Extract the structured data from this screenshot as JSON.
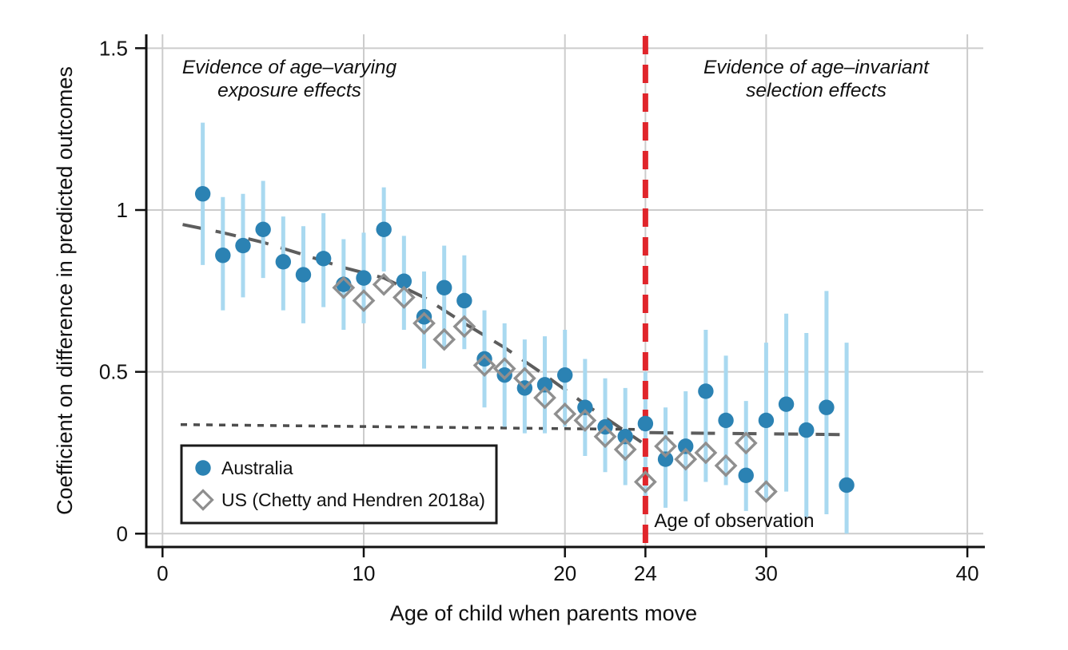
{
  "chart_data": {
    "type": "scatter",
    "title": "",
    "xlabel": "Age of child when parents move",
    "ylabel": "Coefficient on difference in predicted outcomes",
    "xlim": [
      -0.8,
      41
    ],
    "ylim": [
      -0.04,
      1.54
    ],
    "x_ticks": [
      0,
      10,
      20,
      24,
      30,
      40
    ],
    "x_tick_labels": [
      "0",
      "10",
      "20",
      "24",
      "30",
      "40"
    ],
    "y_ticks": [
      0,
      0.5,
      1,
      1.5
    ],
    "y_tick_labels": [
      "0",
      "0.5",
      "1",
      "1.5"
    ],
    "grid": true,
    "legend_position": "lower-left",
    "colors": {
      "australia_marker": "#2b82b3",
      "australia_ci": "#a9d9f0",
      "us_marker": "#8f8f8f",
      "trend_gray": "#5d5d5d",
      "dotted_gray": "#4d4d4d",
      "gridline": "#cccccc",
      "vline_red": "#e0252b",
      "axis_black": "#111111"
    },
    "annotations": {
      "left": {
        "lines": [
          "Evidence of age–varying",
          "exposure effects"
        ]
      },
      "right": {
        "lines": [
          "Evidence of age–invariant",
          "selection effects"
        ]
      },
      "vline_label": "Age of observation"
    },
    "vline": {
      "x": 24
    },
    "legend": {
      "items": [
        {
          "label": "Australia",
          "marker": "circle"
        },
        {
          "label": "US (Chetty and Hendren 2018a)",
          "marker": "diamond"
        }
      ]
    },
    "series": [
      {
        "name": "Australia",
        "marker": "circle",
        "points": [
          {
            "age": 2,
            "v": 1.05,
            "lo": 0.83,
            "hi": 1.27
          },
          {
            "age": 3,
            "v": 0.86,
            "lo": 0.69,
            "hi": 1.04
          },
          {
            "age": 4,
            "v": 0.89,
            "lo": 0.73,
            "hi": 1.05
          },
          {
            "age": 5,
            "v": 0.94,
            "lo": 0.79,
            "hi": 1.09
          },
          {
            "age": 6,
            "v": 0.84,
            "lo": 0.69,
            "hi": 0.98
          },
          {
            "age": 7,
            "v": 0.8,
            "lo": 0.65,
            "hi": 0.95
          },
          {
            "age": 8,
            "v": 0.85,
            "lo": 0.7,
            "hi": 0.99
          },
          {
            "age": 9,
            "v": 0.77,
            "lo": 0.63,
            "hi": 0.91
          },
          {
            "age": 10,
            "v": 0.79,
            "lo": 0.65,
            "hi": 0.93
          },
          {
            "age": 11,
            "v": 0.94,
            "lo": 0.81,
            "hi": 1.07
          },
          {
            "age": 12,
            "v": 0.78,
            "lo": 0.63,
            "hi": 0.92
          },
          {
            "age": 13,
            "v": 0.67,
            "lo": 0.51,
            "hi": 0.81
          },
          {
            "age": 14,
            "v": 0.76,
            "lo": 0.57,
            "hi": 0.89
          },
          {
            "age": 15,
            "v": 0.72,
            "lo": 0.57,
            "hi": 0.86
          },
          {
            "age": 16,
            "v": 0.54,
            "lo": 0.39,
            "hi": 0.69
          },
          {
            "age": 17,
            "v": 0.49,
            "lo": 0.33,
            "hi": 0.65
          },
          {
            "age": 18,
            "v": 0.45,
            "lo": 0.31,
            "hi": 0.6
          },
          {
            "age": 19,
            "v": 0.46,
            "lo": 0.31,
            "hi": 0.61
          },
          {
            "age": 20,
            "v": 0.49,
            "lo": 0.33,
            "hi": 0.63
          },
          {
            "age": 21,
            "v": 0.39,
            "lo": 0.24,
            "hi": 0.54
          },
          {
            "age": 22,
            "v": 0.33,
            "lo": 0.19,
            "hi": 0.48
          },
          {
            "age": 23,
            "v": 0.3,
            "lo": 0.15,
            "hi": 0.45
          },
          {
            "age": 24,
            "v": 0.34,
            "lo": 0.07,
            "hi": 0.5
          },
          {
            "age": 25,
            "v": 0.23,
            "lo": 0.08,
            "hi": 0.39
          },
          {
            "age": 26,
            "v": 0.27,
            "lo": 0.1,
            "hi": 0.44
          },
          {
            "age": 27,
            "v": 0.44,
            "lo": 0.16,
            "hi": 0.63
          },
          {
            "age": 28,
            "v": 0.35,
            "lo": 0.15,
            "hi": 0.55
          },
          {
            "age": 29,
            "v": 0.18,
            "lo": 0.07,
            "hi": 0.41
          },
          {
            "age": 30,
            "v": 0.35,
            "lo": 0.11,
            "hi": 0.59
          },
          {
            "age": 31,
            "v": 0.4,
            "lo": 0.13,
            "hi": 0.68
          },
          {
            "age": 32,
            "v": 0.32,
            "lo": 0.05,
            "hi": 0.62
          },
          {
            "age": 33,
            "v": 0.39,
            "lo": 0.06,
            "hi": 0.75
          },
          {
            "age": 34,
            "v": 0.15,
            "lo": 0.0,
            "hi": 0.59
          }
        ]
      },
      {
        "name": "US (Chetty and Hendren 2018a)",
        "marker": "diamond",
        "points": [
          {
            "age": 9,
            "v": 0.76
          },
          {
            "age": 10,
            "v": 0.72
          },
          {
            "age": 11,
            "v": 0.77
          },
          {
            "age": 12,
            "v": 0.73
          },
          {
            "age": 13,
            "v": 0.65
          },
          {
            "age": 14,
            "v": 0.6
          },
          {
            "age": 15,
            "v": 0.64
          },
          {
            "age": 16,
            "v": 0.52
          },
          {
            "age": 17,
            "v": 0.51
          },
          {
            "age": 18,
            "v": 0.48
          },
          {
            "age": 19,
            "v": 0.42
          },
          {
            "age": 20,
            "v": 0.37
          },
          {
            "age": 21,
            "v": 0.35
          },
          {
            "age": 22,
            "v": 0.3
          },
          {
            "age": 23,
            "v": 0.26
          },
          {
            "age": 24,
            "v": 0.16
          },
          {
            "age": 25,
            "v": 0.27
          },
          {
            "age": 26,
            "v": 0.23
          },
          {
            "age": 27,
            "v": 0.25
          },
          {
            "age": 28,
            "v": 0.21
          },
          {
            "age": 29,
            "v": 0.28
          },
          {
            "age": 30,
            "v": 0.13
          }
        ]
      }
    ],
    "trend_lines": [
      {
        "name": "exposure-effect-fit",
        "style": "longdash",
        "points": [
          [
            1,
            0.955
          ],
          [
            3,
            0.93
          ],
          [
            5,
            0.9
          ],
          [
            7,
            0.862
          ],
          [
            9,
            0.822
          ],
          [
            11,
            0.79
          ],
          [
            13,
            0.73
          ],
          [
            15,
            0.65
          ],
          [
            17,
            0.575
          ],
          [
            19,
            0.49
          ],
          [
            21,
            0.4
          ],
          [
            23.8,
            0.283
          ]
        ]
      },
      {
        "name": "selection-effect-fit-pre",
        "style": "dotted",
        "points": [
          [
            0.9,
            0.337
          ],
          [
            23.8,
            0.322
          ]
        ]
      },
      {
        "name": "selection-effect-fit-post",
        "style": "longdash",
        "points": [
          [
            24.2,
            0.312
          ],
          [
            34,
            0.306
          ]
        ]
      }
    ]
  }
}
